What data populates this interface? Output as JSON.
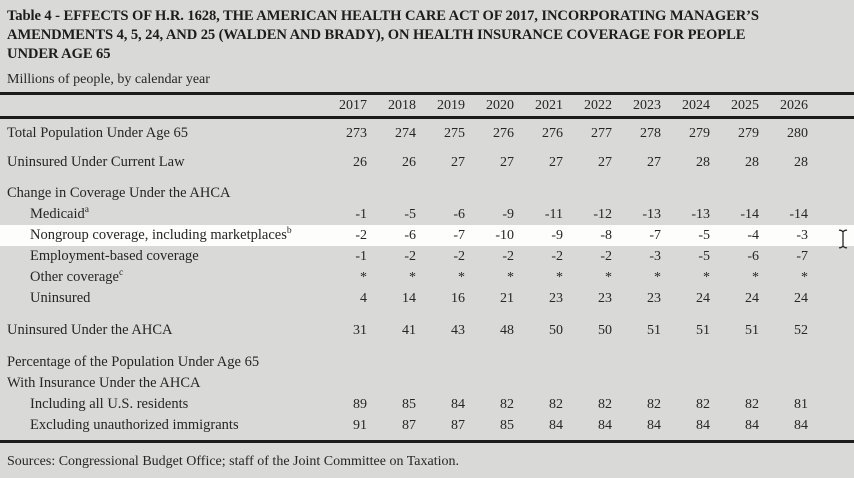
{
  "page": {
    "title_lines": [
      "Table 4 - EFFECTS OF H.R. 1628, THE AMERICAN HEALTH CARE ACT OF 2017, INCORPORATING MANAGER’S",
      "AMENDMENTS 4, 5, 24, AND 25 (WALDEN AND BRADY), ON HEALTH INSURANCE COVERAGE FOR PEOPLE",
      "UNDER AGE 65"
    ],
    "subtitle": "Millions of people, by calendar year",
    "sources": "Sources: Congressional Budget Office; staff of the Joint Committee on Taxation."
  },
  "colors": {
    "page_bg": "#d9d9d8",
    "highlight_row_bg": "#fdfdfc",
    "text": "#262626",
    "rule": "#1b1b1b"
  },
  "cursor": {
    "icon": "text-ibeam-cursor"
  },
  "table": {
    "years": [
      "2017",
      "2018",
      "2019",
      "2020",
      "2021",
      "2022",
      "2023",
      "2024",
      "2025",
      "2026"
    ],
    "rows": [
      {
        "label": "Total Population Under Age 65",
        "sup": "",
        "indent": 0,
        "header": false,
        "highlight": false,
        "gap": "sm",
        "values": [
          "273",
          "274",
          "275",
          "276",
          "276",
          "277",
          "278",
          "279",
          "279",
          "280"
        ]
      },
      {
        "label": "Uninsured Under Current Law",
        "sup": "",
        "indent": 0,
        "header": false,
        "highlight": false,
        "gap": "md",
        "values": [
          "26",
          "26",
          "27",
          "27",
          "27",
          "27",
          "27",
          "28",
          "28",
          "28"
        ]
      },
      {
        "label": "Change in Coverage Under the AHCA",
        "sup": "",
        "indent": 0,
        "header": true,
        "highlight": false,
        "gap": "lg",
        "values": []
      },
      {
        "label": "Medicaid",
        "sup": "a",
        "indent": 1,
        "header": false,
        "highlight": false,
        "gap": "",
        "values": [
          "-1",
          "-5",
          "-6",
          "-9",
          "-11",
          "-12",
          "-13",
          "-13",
          "-14",
          "-14"
        ]
      },
      {
        "label": "Nongroup coverage, including marketplaces",
        "sup": "b",
        "indent": 1,
        "header": false,
        "highlight": true,
        "gap": "",
        "values": [
          "-2",
          "-6",
          "-7",
          "-10",
          "-9",
          "-8",
          "-7",
          "-5",
          "-4",
          "-3"
        ]
      },
      {
        "label": "Employment-based coverage",
        "sup": "",
        "indent": 1,
        "header": false,
        "highlight": false,
        "gap": "",
        "values": [
          "-1",
          "-2",
          "-2",
          "-2",
          "-2",
          "-2",
          "-3",
          "-5",
          "-6",
          "-7"
        ]
      },
      {
        "label": "Other coverage",
        "sup": "c",
        "indent": 1,
        "header": false,
        "highlight": false,
        "gap": "",
        "values": [
          "*",
          "*",
          "*",
          "*",
          "*",
          "*",
          "*",
          "*",
          "*",
          "*"
        ]
      },
      {
        "label": "Uninsured",
        "sup": "",
        "indent": 1,
        "header": false,
        "highlight": false,
        "gap": "",
        "values": [
          "4",
          "14",
          "16",
          "21",
          "23",
          "23",
          "23",
          "24",
          "24",
          "24"
        ]
      },
      {
        "label": "Uninsured Under the AHCA",
        "sup": "",
        "indent": 0,
        "header": false,
        "highlight": false,
        "gap": "xl",
        "values": [
          "31",
          "41",
          "43",
          "48",
          "50",
          "50",
          "51",
          "51",
          "51",
          "52"
        ]
      },
      {
        "label": "Percentage of the Population Under Age 65",
        "sup": "",
        "indent": 0,
        "header": true,
        "highlight": false,
        "gap": "xl",
        "values": []
      },
      {
        "label": "With Insurance Under the AHCA",
        "sup": "",
        "indent": 0,
        "header": true,
        "highlight": false,
        "gap": "",
        "values": []
      },
      {
        "label": "Including all U.S. residents",
        "sup": "",
        "indent": 1,
        "header": false,
        "highlight": false,
        "gap": "",
        "values": [
          "89",
          "85",
          "84",
          "82",
          "82",
          "82",
          "82",
          "82",
          "82",
          "81"
        ]
      },
      {
        "label": "Excluding unauthorized immigrants",
        "sup": "",
        "indent": 1,
        "header": false,
        "highlight": false,
        "gap": "",
        "values": [
          "91",
          "87",
          "87",
          "85",
          "84",
          "84",
          "84",
          "84",
          "84",
          "84"
        ]
      }
    ]
  }
}
